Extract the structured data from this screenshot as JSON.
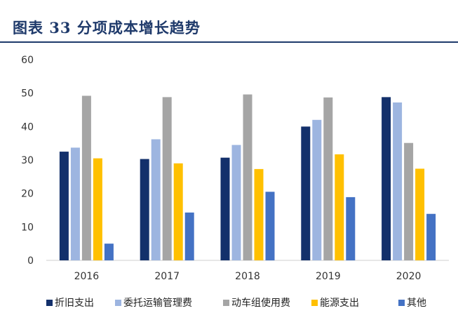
{
  "header": {
    "title": "图表 33   分项成本增长趋势"
  },
  "colors": {
    "title": "#1f3a6b",
    "rule": "#1f3a6b",
    "axis": "#cfcfcf",
    "tick_text": "#333333"
  },
  "chart_data": {
    "type": "bar",
    "title": "",
    "xlabel": "",
    "ylabel": "",
    "categories": [
      "2016",
      "2017",
      "2018",
      "2019",
      "2020"
    ],
    "ylim": [
      0,
      60
    ],
    "yticks": [
      0,
      10,
      20,
      30,
      40,
      50,
      60
    ],
    "grid": false,
    "legend_position": "bottom",
    "series": [
      {
        "name": "折旧支出",
        "color": "#13306b",
        "values": [
          32.5,
          30.3,
          30.7,
          40,
          48.8
        ]
      },
      {
        "name": "委托运输管理费",
        "color": "#9db5e0",
        "values": [
          33.7,
          36.2,
          34.5,
          42,
          47.2
        ]
      },
      {
        "name": "动车组使用费",
        "color": "#a5a5a5",
        "values": [
          49.2,
          48.8,
          49.6,
          48.7,
          35.1
        ]
      },
      {
        "name": "能源支出",
        "color": "#ffc000",
        "values": [
          30.5,
          29,
          27.3,
          31.7,
          27.4
        ]
      },
      {
        "name": "其他",
        "color": "#4472c4",
        "values": [
          5,
          14.3,
          20.5,
          18.9,
          13.9
        ]
      }
    ]
  }
}
